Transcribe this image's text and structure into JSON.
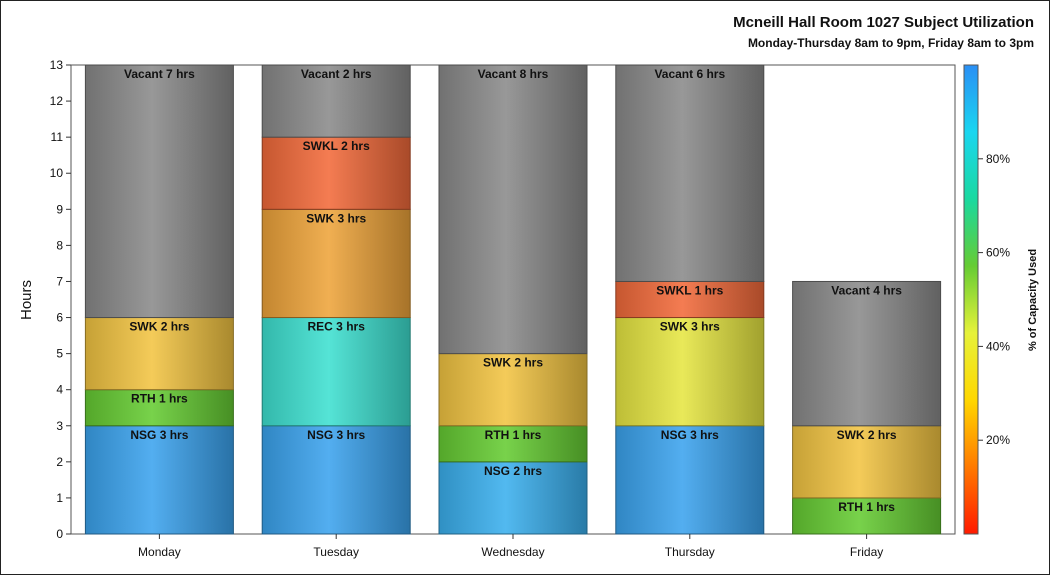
{
  "chart_data": {
    "type": "bar",
    "stacked": true,
    "title": "Mcneill Hall Room 1027 Subject Utilization",
    "subtitle": "Monday-Thursday 8am to 9pm, Friday 8am to 3pm",
    "ylabel": "Hours",
    "xlabel": "",
    "ylim": [
      0,
      13
    ],
    "yticks": [
      0,
      1,
      2,
      3,
      4,
      5,
      6,
      7,
      8,
      9,
      10,
      11,
      12,
      13
    ],
    "categories": [
      "Monday",
      "Tuesday",
      "Wednesday",
      "Thursday",
      "Friday"
    ],
    "stacks": [
      [
        {
          "label": "NSG 3 hrs",
          "value": 3,
          "color": "#3ba3ee"
        },
        {
          "label": "RTH 1 hrs",
          "value": 1,
          "color": "#66cc33"
        },
        {
          "label": "SWK 2 hrs",
          "value": 2,
          "color": "#f2c442"
        },
        {
          "label": "Vacant 7 hrs",
          "value": 7,
          "color": "#8a8a8a"
        }
      ],
      [
        {
          "label": "NSG 3 hrs",
          "value": 3,
          "color": "#3ba3ee"
        },
        {
          "label": "REC 3 hrs",
          "value": 3,
          "color": "#3ee0d0"
        },
        {
          "label": "SWK 3 hrs",
          "value": 3,
          "color": "#eea43a"
        },
        {
          "label": "SWKL 2 hrs",
          "value": 2,
          "color": "#f26a3a"
        },
        {
          "label": "Vacant 2 hrs",
          "value": 2,
          "color": "#8a8a8a"
        }
      ],
      [
        {
          "label": "NSG 2 hrs",
          "value": 2,
          "color": "#3ab0ee"
        },
        {
          "label": "RTH 1 hrs",
          "value": 1,
          "color": "#66cc33"
        },
        {
          "label": "SWK 2 hrs",
          "value": 2,
          "color": "#f2c442"
        },
        {
          "label": "Vacant 8 hrs",
          "value": 8,
          "color": "#8a8a8a"
        }
      ],
      [
        {
          "label": "NSG 3 hrs",
          "value": 3,
          "color": "#3ba3ee"
        },
        {
          "label": "SWK 3 hrs",
          "value": 3,
          "color": "#e6e642"
        },
        {
          "label": "SWKL 1 hrs",
          "value": 1,
          "color": "#f26a3a"
        },
        {
          "label": "Vacant 6 hrs",
          "value": 6,
          "color": "#8a8a8a"
        }
      ],
      [
        {
          "label": "RTH 1 hrs",
          "value": 1,
          "color": "#66cc33"
        },
        {
          "label": "SWK 2 hrs",
          "value": 2,
          "color": "#f2c442"
        },
        {
          "label": "Vacant 4 hrs",
          "value": 4,
          "color": "#8a8a8a"
        }
      ]
    ],
    "colorbar": {
      "label": "% of Capacity Used",
      "ticks": [
        "20%",
        "40%",
        "60%",
        "80%"
      ],
      "tick_values": [
        20,
        40,
        60,
        80
      ],
      "range": [
        0,
        100
      ],
      "colors": [
        "#ff1a00",
        "#ff7a00",
        "#ffd700",
        "#e6f23a",
        "#66cc33",
        "#1ad9a0",
        "#1ad6f0",
        "#2a8ff5"
      ]
    },
    "grid": false
  }
}
